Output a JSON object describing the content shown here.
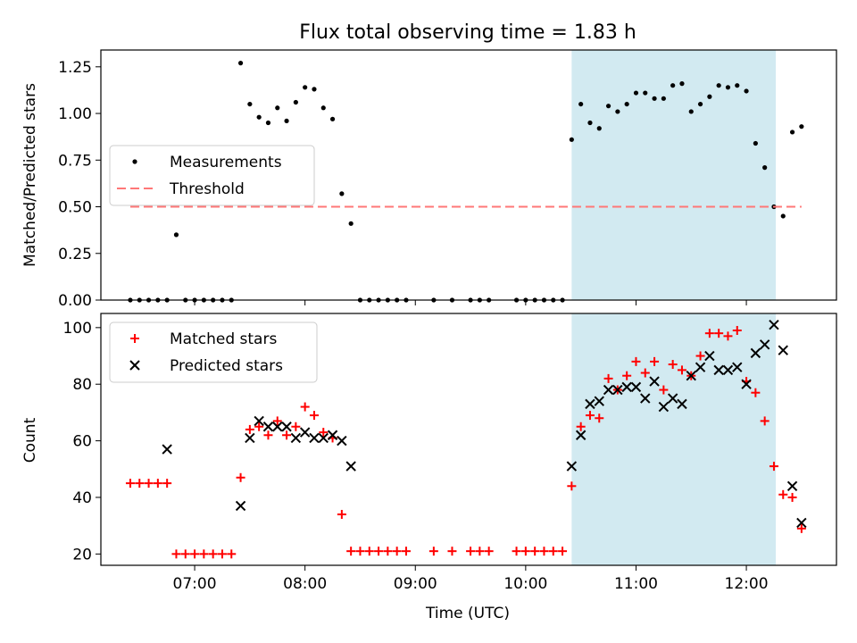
{
  "chart_data": {
    "title": "Flux total observing time = 1.83 h",
    "xlabel": "Time (UTC)",
    "x_ticks": [
      "07:00",
      "08:00",
      "09:00",
      "10:00",
      "11:00",
      "12:00"
    ],
    "x_range": [
      "06:09",
      "12:49"
    ],
    "shaded_interval": [
      "10:25",
      "12:16"
    ],
    "shade_color": "#add8e6",
    "panels": [
      {
        "type": "scatter",
        "ylabel": "Matched/Predicted stars",
        "ylim": [
          0,
          1.34
        ],
        "y_ticks": [
          "0.00",
          "0.25",
          "0.50",
          "0.75",
          "1.00",
          "1.25"
        ],
        "legend_position": "center-left",
        "series": [
          {
            "name": "Measurements",
            "marker": "dot",
            "color": "#000000",
            "points": [
              [
                "06:25",
                0
              ],
              [
                "06:30",
                0
              ],
              [
                "06:35",
                0
              ],
              [
                "06:40",
                0
              ],
              [
                "06:45",
                0
              ],
              [
                "06:50",
                0.35
              ],
              [
                "06:55",
                0
              ],
              [
                "07:00",
                0
              ],
              [
                "07:05",
                0
              ],
              [
                "07:10",
                0
              ],
              [
                "07:15",
                0
              ],
              [
                "07:20",
                0
              ],
              [
                "07:25",
                1.27
              ],
              [
                "07:30",
                1.05
              ],
              [
                "07:35",
                0.98
              ],
              [
                "07:40",
                0.95
              ],
              [
                "07:45",
                1.03
              ],
              [
                "07:50",
                0.96
              ],
              [
                "07:55",
                1.06
              ],
              [
                "08:00",
                1.14
              ],
              [
                "08:05",
                1.13
              ],
              [
                "08:10",
                1.03
              ],
              [
                "08:15",
                0.97
              ],
              [
                "08:20",
                0.57
              ],
              [
                "08:25",
                0.41
              ],
              [
                "08:30",
                0
              ],
              [
                "08:35",
                0
              ],
              [
                "08:40",
                0
              ],
              [
                "08:45",
                0
              ],
              [
                "08:50",
                0
              ],
              [
                "08:55",
                0
              ],
              [
                "09:10",
                0
              ],
              [
                "09:20",
                0
              ],
              [
                "09:30",
                0
              ],
              [
                "09:35",
                0
              ],
              [
                "09:40",
                0
              ],
              [
                "09:55",
                0
              ],
              [
                "10:00",
                0
              ],
              [
                "10:05",
                0
              ],
              [
                "10:10",
                0
              ],
              [
                "10:15",
                0
              ],
              [
                "10:20",
                0
              ],
              [
                "10:25",
                0.86
              ],
              [
                "10:30",
                1.05
              ],
              [
                "10:35",
                0.95
              ],
              [
                "10:40",
                0.92
              ],
              [
                "10:45",
                1.04
              ],
              [
                "10:50",
                1.01
              ],
              [
                "10:55",
                1.05
              ],
              [
                "11:00",
                1.11
              ],
              [
                "11:05",
                1.11
              ],
              [
                "11:10",
                1.08
              ],
              [
                "11:15",
                1.08
              ],
              [
                "11:20",
                1.15
              ],
              [
                "11:25",
                1.16
              ],
              [
                "11:30",
                1.01
              ],
              [
                "11:35",
                1.05
              ],
              [
                "11:40",
                1.09
              ],
              [
                "11:45",
                1.15
              ],
              [
                "11:50",
                1.14
              ],
              [
                "11:55",
                1.15
              ],
              [
                "12:00",
                1.12
              ],
              [
                "12:05",
                0.84
              ],
              [
                "12:10",
                0.71
              ],
              [
                "12:15",
                0.5
              ],
              [
                "12:20",
                0.45
              ],
              [
                "12:25",
                0.9
              ],
              [
                "12:30",
                0.93
              ]
            ]
          },
          {
            "name": "Threshold",
            "marker": "dashed-line",
            "color": "#ff7777",
            "points": [
              [
                "06:25",
                0.5
              ],
              [
                "12:30",
                0.5
              ]
            ]
          }
        ]
      },
      {
        "type": "scatter",
        "ylabel": "Count",
        "ylim": [
          16,
          105
        ],
        "y_ticks": [
          "20",
          "40",
          "60",
          "80",
          "100"
        ],
        "legend_position": "top-left",
        "series": [
          {
            "name": "Matched stars",
            "marker": "plus",
            "color": "#ff0000",
            "points": [
              [
                "06:25",
                45
              ],
              [
                "06:30",
                45
              ],
              [
                "06:35",
                45
              ],
              [
                "06:40",
                45
              ],
              [
                "06:45",
                45
              ],
              [
                "06:50",
                20
              ],
              [
                "06:55",
                20
              ],
              [
                "07:00",
                20
              ],
              [
                "07:05",
                20
              ],
              [
                "07:10",
                20
              ],
              [
                "07:15",
                20
              ],
              [
                "07:20",
                20
              ],
              [
                "07:25",
                47
              ],
              [
                "07:30",
                64
              ],
              [
                "07:35",
                65
              ],
              [
                "07:40",
                62
              ],
              [
                "07:45",
                67
              ],
              [
                "07:50",
                62
              ],
              [
                "07:55",
                65
              ],
              [
                "08:00",
                72
              ],
              [
                "08:05",
                69
              ],
              [
                "08:10",
                63
              ],
              [
                "08:15",
                61
              ],
              [
                "08:20",
                34
              ],
              [
                "08:25",
                21
              ],
              [
                "08:30",
                21
              ],
              [
                "08:35",
                21
              ],
              [
                "08:40",
                21
              ],
              [
                "08:45",
                21
              ],
              [
                "08:50",
                21
              ],
              [
                "08:55",
                21
              ],
              [
                "09:10",
                21
              ],
              [
                "09:20",
                21
              ],
              [
                "09:30",
                21
              ],
              [
                "09:35",
                21
              ],
              [
                "09:40",
                21
              ],
              [
                "09:55",
                21
              ],
              [
                "10:00",
                21
              ],
              [
                "10:05",
                21
              ],
              [
                "10:10",
                21
              ],
              [
                "10:15",
                21
              ],
              [
                "10:20",
                21
              ],
              [
                "10:25",
                44
              ],
              [
                "10:30",
                65
              ],
              [
                "10:35",
                69
              ],
              [
                "10:40",
                68
              ],
              [
                "10:45",
                82
              ],
              [
                "10:50",
                78
              ],
              [
                "10:55",
                83
              ],
              [
                "11:00",
                88
              ],
              [
                "11:05",
                84
              ],
              [
                "11:10",
                88
              ],
              [
                "11:15",
                78
              ],
              [
                "11:20",
                87
              ],
              [
                "11:25",
                85
              ],
              [
                "11:30",
                83
              ],
              [
                "11:35",
                90
              ],
              [
                "11:40",
                98
              ],
              [
                "11:45",
                98
              ],
              [
                "11:50",
                97
              ],
              [
                "11:55",
                99
              ],
              [
                "12:00",
                81
              ],
              [
                "12:05",
                77
              ],
              [
                "12:10",
                67
              ],
              [
                "12:15",
                51
              ],
              [
                "12:20",
                41
              ],
              [
                "12:25",
                40
              ],
              [
                "12:30",
                29
              ]
            ]
          },
          {
            "name": "Predicted stars",
            "marker": "x",
            "color": "#000000",
            "points": [
              [
                "06:45",
                57
              ],
              [
                "07:25",
                37
              ],
              [
                "07:30",
                61
              ],
              [
                "07:35",
                67
              ],
              [
                "07:40",
                65
              ],
              [
                "07:45",
                65
              ],
              [
                "07:50",
                65
              ],
              [
                "07:55",
                61
              ],
              [
                "08:00",
                63
              ],
              [
                "08:05",
                61
              ],
              [
                "08:10",
                61
              ],
              [
                "08:15",
                62
              ],
              [
                "08:20",
                60
              ],
              [
                "08:25",
                51
              ],
              [
                "10:25",
                51
              ],
              [
                "10:30",
                62
              ],
              [
                "10:35",
                73
              ],
              [
                "10:40",
                74
              ],
              [
                "10:45",
                78
              ],
              [
                "10:50",
                78
              ],
              [
                "10:55",
                79
              ],
              [
                "11:00",
                79
              ],
              [
                "11:05",
                75
              ],
              [
                "11:10",
                81
              ],
              [
                "11:15",
                72
              ],
              [
                "11:20",
                75
              ],
              [
                "11:25",
                73
              ],
              [
                "11:30",
                83
              ],
              [
                "11:35",
                86
              ],
              [
                "11:40",
                90
              ],
              [
                "11:45",
                85
              ],
              [
                "11:50",
                85
              ],
              [
                "11:55",
                86
              ],
              [
                "12:00",
                80
              ],
              [
                "12:05",
                91
              ],
              [
                "12:10",
                94
              ],
              [
                "12:15",
                101
              ],
              [
                "12:20",
                92
              ],
              [
                "12:25",
                44
              ],
              [
                "12:30",
                31
              ]
            ]
          }
        ]
      }
    ]
  }
}
